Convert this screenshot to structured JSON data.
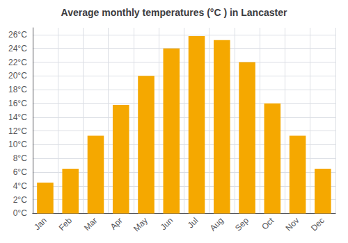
{
  "chart_data": {
    "type": "bar",
    "title": "Average monthly temperatures (°C ) in Lancaster",
    "categories": [
      "Jan",
      "Feb",
      "Mar",
      "Apr",
      "May",
      "Jun",
      "Jul",
      "Aug",
      "Sep",
      "Oct",
      "Nov",
      "Dec"
    ],
    "values": [
      4.5,
      6.5,
      11.3,
      15.8,
      20.0,
      24.0,
      25.8,
      25.2,
      22.0,
      16.0,
      11.3,
      6.5
    ],
    "color": "#F5A800",
    "ylim": [
      0,
      27
    ],
    "yticks": [
      {
        "value": 0,
        "label": "0°C"
      },
      {
        "value": 2,
        "label": "2°C"
      },
      {
        "value": 4,
        "label": "4°C"
      },
      {
        "value": 6,
        "label": "6°C"
      },
      {
        "value": 8,
        "label": "8°C"
      },
      {
        "value": 10,
        "label": "10°C"
      },
      {
        "value": 12,
        "label": "12°C"
      },
      {
        "value": 14,
        "label": "14°C"
      },
      {
        "value": 16,
        "label": "16°C"
      },
      {
        "value": 18,
        "label": "18°C"
      },
      {
        "value": 20,
        "label": "20°C"
      },
      {
        "value": 22,
        "label": "22°C"
      },
      {
        "value": 24,
        "label": "24°C"
      },
      {
        "value": 26,
        "label": "26°C"
      }
    ],
    "grid": true
  }
}
